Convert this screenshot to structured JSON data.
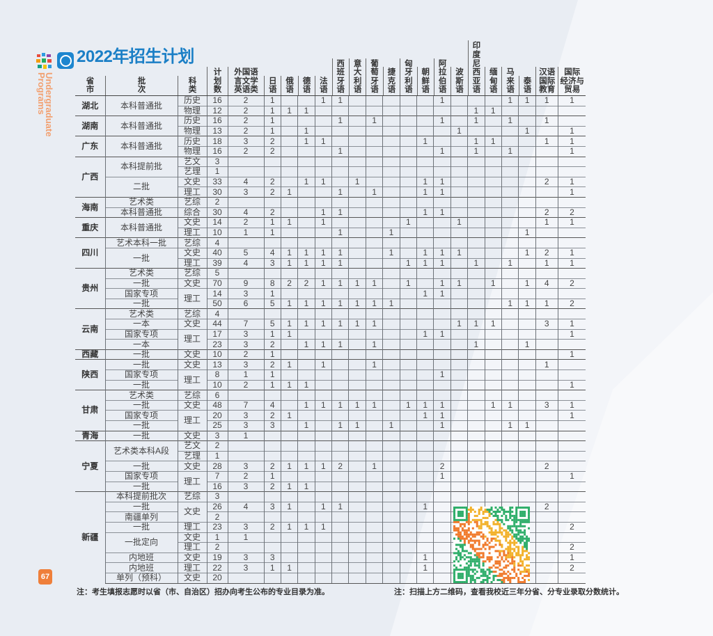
{
  "header": {
    "title": "2022年招生计划",
    "side_text": "Undergraduate\nPrograms",
    "page_number": "67"
  },
  "table": {
    "columns": [
      "省\n市",
      "批\n次",
      "科\n类",
      "计\n划\n数",
      "外国语\n言文学\n英语类",
      "日\n语",
      "俄\n语",
      "德\n语",
      "法\n语",
      "西\n班\n牙\n语",
      "意\n大\n利\n语",
      "葡\n萄\n牙\n语",
      "捷\n克\n语",
      "匈\n牙\n利\n语",
      "朝\n鲜\n语",
      "阿\n拉\n伯\n语",
      "波\n斯\n语",
      "印\n度\n尼\n西\n亚\n语",
      "缅\n甸\n语",
      "马\n来\n语",
      "泰\n语",
      "汉语\n国际\n教育",
      "国际\n经济与\n贸易"
    ],
    "provinces": [
      {
        "name": "湖北",
        "rows": [
          {
            "batch": "本科普通批",
            "type": "历史",
            "values": [
              16,
              2,
              1,
              null,
              null,
              1,
              1,
              null,
              null,
              null,
              null,
              null,
              1,
              null,
              null,
              null,
              1,
              1,
              1,
              1
            ]
          },
          {
            "batch": null,
            "type": "物理",
            "values": [
              12,
              2,
              1,
              1,
              1,
              null,
              null,
              null,
              null,
              null,
              null,
              null,
              null,
              null,
              1,
              1
            ]
          }
        ]
      },
      {
        "name": "湖南",
        "rows": [
          {
            "batch": "本科普通批",
            "type": "历史",
            "values": [
              16,
              2,
              1,
              null,
              null,
              null,
              1,
              null,
              1,
              null,
              null,
              null,
              1,
              null,
              1,
              null,
              1,
              null,
              1
            ]
          },
          {
            "batch": null,
            "type": "物理",
            "values": [
              13,
              2,
              1,
              null,
              1,
              null,
              null,
              null,
              null,
              null,
              null,
              null,
              null,
              1,
              null,
              null,
              null,
              1,
              null,
              1
            ]
          }
        ]
      },
      {
        "name": "广东",
        "rows": [
          {
            "batch": "本科普通批",
            "type": "历史",
            "values": [
              18,
              3,
              2,
              null,
              1,
              1,
              null,
              null,
              null,
              null,
              null,
              1,
              null,
              null,
              1,
              1,
              null,
              null,
              1,
              1
            ]
          },
          {
            "batch": null,
            "type": "物理",
            "values": [
              16,
              2,
              2,
              null,
              null,
              null,
              1,
              null,
              null,
              null,
              null,
              null,
              1,
              null,
              1,
              null,
              1,
              null,
              null,
              1
            ]
          }
        ]
      },
      {
        "name": "广西",
        "rows": [
          {
            "batch": "本科提前批",
            "type": "艺文",
            "values": [
              3
            ]
          },
          {
            "batch": null,
            "type": "艺理",
            "values": [
              1
            ]
          },
          {
            "batch": "二批",
            "type": "文史",
            "values": [
              33,
              4,
              2,
              null,
              1,
              1,
              null,
              1,
              null,
              null,
              null,
              1,
              1,
              null,
              null,
              null,
              null,
              null,
              2,
              1
            ]
          },
          {
            "batch": null,
            "type": "理工",
            "values": [
              30,
              3,
              2,
              1,
              null,
              null,
              1,
              null,
              1,
              null,
              null,
              1,
              1,
              null,
              null,
              null,
              null,
              null,
              null,
              1
            ]
          }
        ]
      },
      {
        "name": "海南",
        "rows": [
          {
            "batch": "艺术类",
            "type": "艺综",
            "values": [
              2
            ]
          },
          {
            "batch": "本科普通批",
            "type": "综合",
            "values": [
              30,
              4,
              2,
              null,
              null,
              1,
              1,
              null,
              null,
              null,
              null,
              1,
              1,
              null,
              null,
              null,
              null,
              null,
              2,
              2
            ]
          }
        ]
      },
      {
        "name": "重庆",
        "rows": [
          {
            "batch": "本科普通批",
            "type": "文史",
            "values": [
              14,
              2,
              1,
              1,
              null,
              1,
              null,
              null,
              null,
              null,
              1,
              null,
              null,
              1,
              null,
              null,
              null,
              null,
              1,
              1
            ]
          },
          {
            "batch": null,
            "type": "理工",
            "values": [
              10,
              1,
              1,
              null,
              null,
              null,
              1,
              null,
              null,
              1,
              null,
              null,
              null,
              null,
              null,
              null,
              null,
              1
            ]
          }
        ]
      },
      {
        "name": "四川",
        "rows": [
          {
            "batch": "艺术本科一批",
            "type": "艺综",
            "values": [
              4
            ]
          },
          {
            "batch": "一批",
            "type": "文史",
            "values": [
              40,
              5,
              4,
              1,
              1,
              1,
              1,
              null,
              null,
              1,
              null,
              1,
              1,
              1,
              null,
              null,
              null,
              1,
              2,
              1
            ]
          },
          {
            "batch": null,
            "type": "理工",
            "values": [
              39,
              4,
              3,
              1,
              1,
              1,
              1,
              null,
              null,
              null,
              1,
              1,
              1,
              null,
              1,
              null,
              1,
              null,
              1,
              1
            ]
          }
        ]
      },
      {
        "name": "贵州",
        "rows": [
          {
            "batch": "艺术类",
            "type": "艺综",
            "values": [
              5
            ]
          },
          {
            "batch": "一批",
            "type": "文史",
            "values": [
              70,
              9,
              8,
              2,
              2,
              1,
              1,
              1,
              1,
              null,
              1,
              null,
              1,
              1,
              null,
              1,
              null,
              1,
              4,
              2
            ]
          },
          {
            "batch": "国家专项",
            "type": "理工",
            "values": [
              14,
              3,
              1,
              null,
              null,
              null,
              null,
              null,
              null,
              null,
              null,
              1,
              1
            ]
          },
          {
            "batch": "一批",
            "type": null,
            "values": [
              50,
              6,
              5,
              1,
              1,
              1,
              1,
              1,
              1,
              1,
              null,
              null,
              null,
              null,
              null,
              null,
              1,
              1,
              1,
              2
            ]
          }
        ]
      },
      {
        "name": "云南",
        "rows": [
          {
            "batch": "艺术类",
            "type": "艺综",
            "values": [
              4
            ]
          },
          {
            "batch": "一本",
            "type": "文史",
            "values": [
              44,
              7,
              5,
              1,
              1,
              1,
              1,
              1,
              1,
              null,
              null,
              null,
              null,
              1,
              1,
              1,
              null,
              null,
              3,
              1
            ]
          },
          {
            "batch": "国家专项",
            "type": "理工",
            "values": [
              17,
              3,
              1,
              1,
              null,
              null,
              null,
              null,
              null,
              null,
              null,
              1,
              1,
              null,
              null,
              null,
              null,
              null,
              null,
              1
            ]
          },
          {
            "batch": "一本",
            "type": null,
            "values": [
              23,
              3,
              2,
              null,
              1,
              1,
              1,
              null,
              1,
              null,
              null,
              null,
              null,
              null,
              1,
              null,
              null,
              1
            ]
          }
        ]
      },
      {
        "name": "西藏",
        "rows": [
          {
            "batch": "一批",
            "type": "文史",
            "values": [
              10,
              2,
              1,
              null,
              null,
              null,
              null,
              null,
              null,
              null,
              null,
              null,
              null,
              null,
              null,
              null,
              null,
              null,
              null,
              1
            ]
          }
        ]
      },
      {
        "name": "陕西",
        "rows": [
          {
            "batch": "一批",
            "type": "文史",
            "values": [
              13,
              3,
              2,
              1,
              null,
              1,
              null,
              null,
              1,
              null,
              null,
              null,
              null,
              null,
              null,
              null,
              null,
              null,
              1
            ]
          },
          {
            "batch": "国家专项",
            "type": "理工",
            "values": [
              8,
              1,
              1,
              null,
              null,
              null,
              null,
              null,
              null,
              null,
              null,
              null,
              1
            ]
          },
          {
            "batch": "一批",
            "type": null,
            "values": [
              10,
              2,
              1,
              1,
              1,
              null,
              null,
              null,
              null,
              null,
              null,
              null,
              null,
              null,
              null,
              null,
              null,
              null,
              null,
              1
            ]
          }
        ]
      },
      {
        "name": "甘肃",
        "rows": [
          {
            "batch": "艺术类",
            "type": "艺综",
            "values": [
              6
            ]
          },
          {
            "batch": "一批",
            "type": "文史",
            "values": [
              48,
              7,
              4,
              null,
              1,
              1,
              1,
              1,
              1,
              null,
              1,
              1,
              1,
              null,
              null,
              1,
              1,
              null,
              3,
              1
            ]
          },
          {
            "batch": "国家专项",
            "type": "理工",
            "values": [
              20,
              3,
              2,
              1,
              null,
              null,
              null,
              null,
              null,
              null,
              null,
              1,
              1,
              null,
              null,
              null,
              null,
              null,
              null,
              1
            ]
          },
          {
            "batch": "一批",
            "type": null,
            "values": [
              25,
              3,
              3,
              null,
              1,
              null,
              1,
              1,
              null,
              1,
              null,
              null,
              1,
              null,
              null,
              null,
              1,
              1
            ]
          }
        ]
      },
      {
        "name": "青海",
        "rows": [
          {
            "batch": "一批",
            "type": "文史",
            "values": [
              3,
              1
            ]
          }
        ]
      },
      {
        "name": "宁夏",
        "rows": [
          {
            "batch": "艺术类本科A段",
            "type": "艺文",
            "values": [
              2
            ]
          },
          {
            "batch": null,
            "type": "艺理",
            "values": [
              1
            ]
          },
          {
            "batch": "一批",
            "type": "文史",
            "values": [
              28,
              3,
              2,
              1,
              1,
              1,
              2,
              null,
              1,
              null,
              null,
              null,
              2,
              null,
              null,
              null,
              null,
              null,
              2
            ]
          },
          {
            "batch": "国家专项",
            "type": "理工",
            "values": [
              7,
              2,
              1,
              null,
              null,
              null,
              null,
              null,
              null,
              null,
              null,
              null,
              1,
              null,
              null,
              null,
              null,
              null,
              null,
              1
            ]
          },
          {
            "batch": "一批",
            "type": null,
            "values": [
              16,
              3,
              2,
              1,
              1
            ]
          }
        ]
      },
      {
        "name": "新疆",
        "rows": [
          {
            "batch": "本科提前批次",
            "type": "艺综",
            "values": [
              3
            ]
          },
          {
            "batch": "一批",
            "type": "文史",
            "values": [
              26,
              4,
              3,
              1,
              null,
              1,
              1,
              null,
              null,
              null,
              null,
              1,
              null,
              null,
              null,
              null,
              null,
              null,
              2
            ]
          },
          {
            "batch": "南疆单列",
            "type": null,
            "values": [
              2
            ]
          },
          {
            "batch": "一批",
            "type": "理工",
            "values": [
              23,
              3,
              2,
              1,
              1,
              1,
              null,
              null,
              null,
              null,
              null,
              null,
              null,
              null,
              null,
              null,
              null,
              null,
              null,
              2
            ]
          },
          {
            "batch": "一批定向",
            "type": "文史",
            "values": [
              1,
              1
            ]
          },
          {
            "batch": null,
            "type": "理工",
            "values": [
              2,
              null,
              null,
              null,
              null,
              null,
              null,
              null,
              null,
              null,
              null,
              null,
              null,
              null,
              null,
              null,
              null,
              null,
              null,
              2
            ]
          },
          {
            "batch": "内地班",
            "type": "文史",
            "values": [
              19,
              3,
              3,
              null,
              null,
              null,
              null,
              null,
              null,
              null,
              null,
              1,
              null,
              null,
              null,
              null,
              null,
              null,
              null,
              1
            ]
          },
          {
            "batch": "内地班",
            "type": "理工",
            "values": [
              22,
              3,
              1,
              1,
              null,
              null,
              null,
              null,
              null,
              null,
              null,
              1,
              null,
              null,
              null,
              null,
              null,
              null,
              null,
              2
            ]
          },
          {
            "batch": "单列（预科）",
            "type": "文史",
            "values": [
              20
            ]
          }
        ]
      }
    ]
  },
  "notes": {
    "left": "注：考生填报志愿时以省（市、自治区）招办向考生公布的专业目录为准。",
    "right": "注：扫描上方二维码，查看我校近三年分省、分专业录取分数统计。"
  },
  "colors": {
    "title": "#1b7fc6",
    "accent_orange": "#ef7f3a",
    "qr_green": "#2fae6a",
    "qr_orange": "#f07a2c",
    "qr_yellow": "#f2b12a"
  },
  "icons": [
    "university-logo",
    "title-badge-icon",
    "qr-code"
  ]
}
